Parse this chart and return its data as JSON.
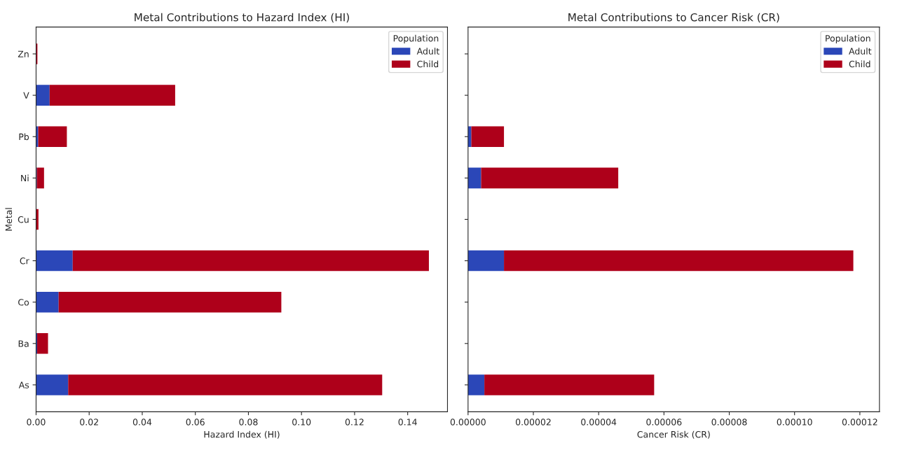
{
  "chart_data": [
    {
      "type": "bar",
      "orientation": "horizontal",
      "stacked": true,
      "title": "Metal Contributions to Hazard Index (HI)",
      "xlabel": "Hazard Index (HI)",
      "ylabel": "Metal",
      "legend_title": "Population",
      "legend": "top right",
      "categories": [
        "Zn",
        "V",
        "Pb",
        "Ni",
        "Cu",
        "Cr",
        "Co",
        "Ba",
        "As"
      ],
      "series": [
        {
          "name": "Adult",
          "color": "#2b47b8",
          "values": [
            0,
            0.0051,
            0.0008,
            0.0003,
            null,
            0.0138,
            0.0085,
            0.0004,
            0.0121
          ]
        },
        {
          "name": "Child",
          "color": "#ae001a",
          "values": [
            0.0005,
            0.0473,
            0.0108,
            0.0027,
            0.0009,
            0.1342,
            0.0839,
            0.0041,
            0.1183
          ]
        }
      ],
      "xlim": [
        0,
        0.155
      ],
      "xticks": [
        {
          "value": 0,
          "label": "0.00"
        },
        0.02,
        0.04,
        0.06,
        0.08,
        {
          "value": 0.1,
          "label": "0.10"
        },
        0.12,
        0.14
      ]
    },
    {
      "type": "bar",
      "orientation": "horizontal",
      "stacked": true,
      "title": "Metal Contributions to Cancer Risk (CR)",
      "xlabel": "Cancer Risk (CR)",
      "legend_title": "Population",
      "legend": "top right",
      "tick_labels": "x",
      "categories": [
        null,
        null,
        null,
        null,
        null,
        null,
        null,
        null,
        null
      ],
      "series": [
        {
          "name": "Adult",
          "color": "#2b47b8",
          "values": [
            null,
            null,
            1e-06,
            4e-06,
            null,
            1.1e-05,
            null,
            null,
            5e-06
          ]
        },
        {
          "name": "Child",
          "color": "#ae001a",
          "values": [
            null,
            null,
            1e-05,
            4.2e-05,
            null,
            0.000107,
            null,
            null,
            5.2e-05
          ]
        }
      ],
      "xlim": [
        0,
        0.000126
      ],
      "xticks": [
        {
          "value": 0,
          "label": "0.00000"
        },
        {
          "value": 2e-05,
          "label": "0.00002"
        },
        {
          "value": 4e-05,
          "label": "0.00004"
        },
        {
          "value": 6e-05,
          "label": "0.00006"
        },
        {
          "value": 8e-05,
          "label": "0.00008"
        },
        {
          "value": 0.0001,
          "label": "0.00010"
        },
        {
          "value": 0.00012,
          "label": "0.00012"
        }
      ]
    }
  ]
}
